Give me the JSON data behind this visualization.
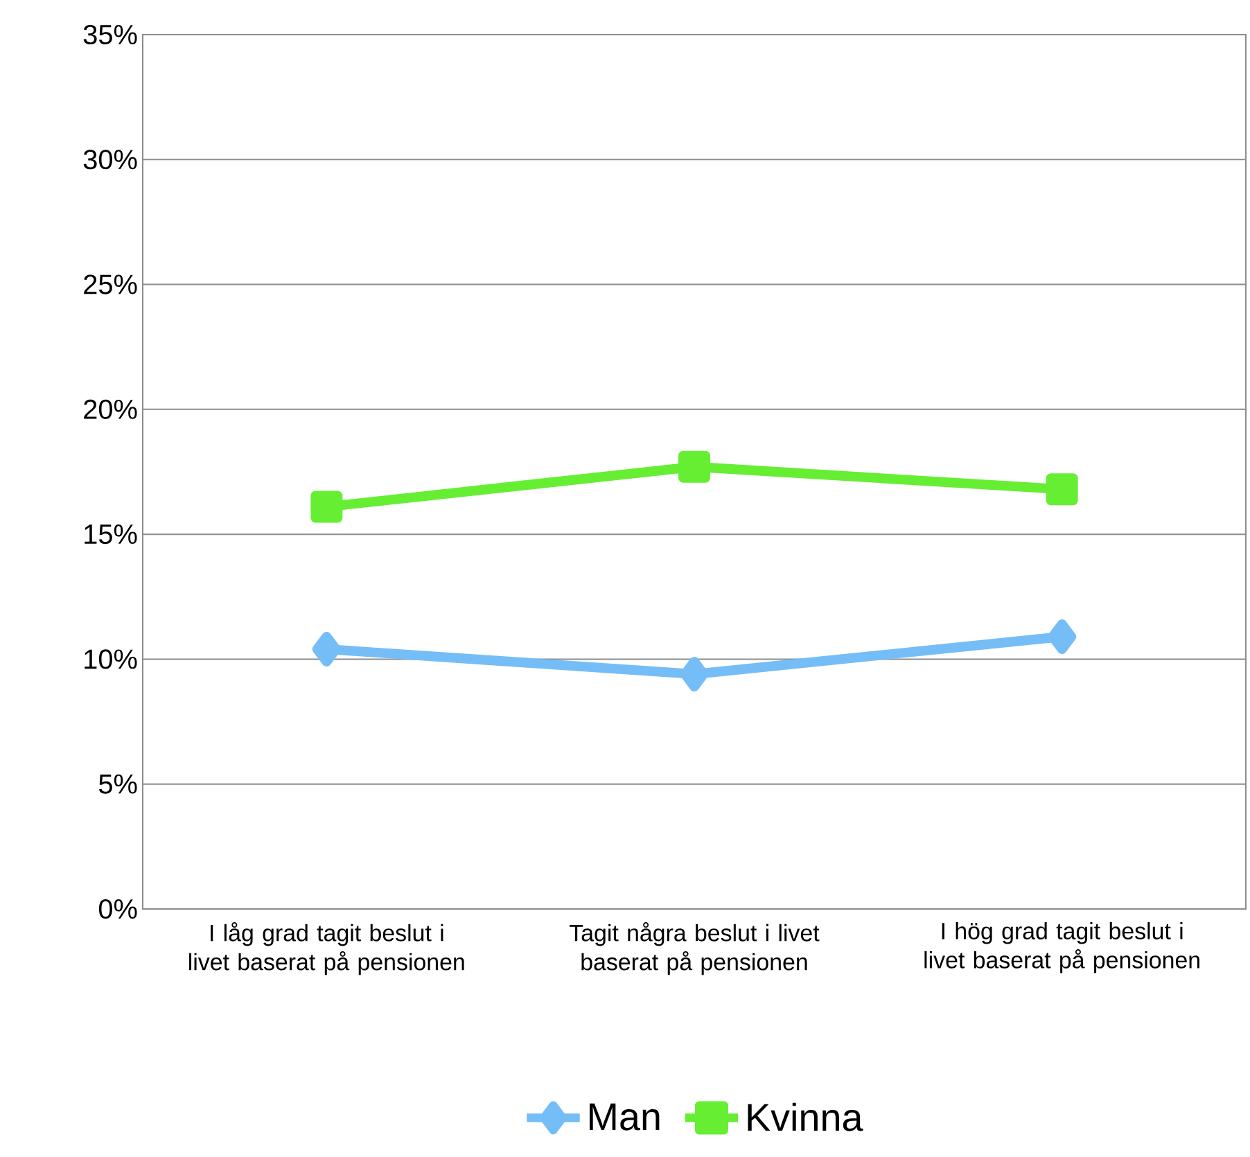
{
  "chart_data": {
    "type": "line",
    "categories": [
      "I låg grad tagit beslut i livet baserat på pensionen",
      "Tagit några beslut i livet baserat på pensionen",
      "I hög grad tagit beslut i livet baserat på pensionen"
    ],
    "series": [
      {
        "name": "Man",
        "color": "#75bdf7",
        "marker": "diamond",
        "values": [
          10.4,
          9.4,
          10.9
        ]
      },
      {
        "name": "Kvinna",
        "color": "#66ee33",
        "marker": "square",
        "values": [
          16.1,
          17.7,
          16.8
        ]
      }
    ],
    "ylim": [
      0,
      35
    ],
    "yticks": [
      {
        "value": 0,
        "label": "0%"
      },
      {
        "value": 5,
        "label": "5%"
      },
      {
        "value": 10,
        "label": "10%"
      },
      {
        "value": 15,
        "label": "15%"
      },
      {
        "value": 20,
        "label": "20%"
      },
      {
        "value": 25,
        "label": "25%"
      },
      {
        "value": 30,
        "label": "30%"
      },
      {
        "value": 35,
        "label": "35%"
      }
    ],
    "grid": "y",
    "legend": "bottom",
    "line_style": "solid"
  }
}
